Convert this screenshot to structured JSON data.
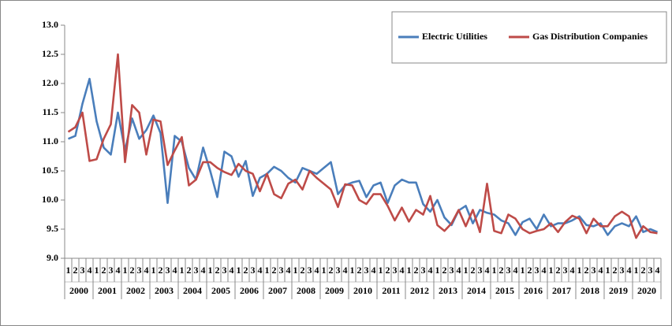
{
  "chart_data": {
    "type": "line",
    "categories": [
      "1",
      "2",
      "3",
      "4",
      "1",
      "2",
      "3",
      "4",
      "1",
      "2",
      "3",
      "4",
      "1",
      "2",
      "3",
      "4",
      "1",
      "2",
      "3",
      "4",
      "1",
      "2",
      "3",
      "4",
      "1",
      "2",
      "3",
      "4",
      "1",
      "2",
      "3",
      "4",
      "1",
      "2",
      "3",
      "4",
      "1",
      "2",
      "3",
      "4",
      "1",
      "2",
      "3",
      "4",
      "1",
      "2",
      "3",
      "4",
      "1",
      "2",
      "3",
      "4",
      "1",
      "2",
      "3",
      "4",
      "1",
      "2",
      "3",
      "4",
      "1",
      "2",
      "3",
      "4",
      "1",
      "2",
      "3",
      "4",
      "1",
      "2",
      "3",
      "4",
      "1",
      "2",
      "3",
      "4",
      "1",
      "2",
      "3",
      "4",
      "1",
      "2",
      "3",
      "4"
    ],
    "years": [
      "2000",
      "2001",
      "2002",
      "2003",
      "2004",
      "2005",
      "2006",
      "2007",
      "2008",
      "2009",
      "2010",
      "2011",
      "2012",
      "2013",
      "2014",
      "2015",
      "2016",
      "2017",
      "2018",
      "2019",
      "2020"
    ],
    "series": [
      {
        "name": "Electric Utilities",
        "color": "#4a7ebb",
        "values": [
          11.05,
          11.1,
          11.65,
          12.08,
          11.35,
          10.9,
          10.78,
          11.5,
          10.85,
          11.4,
          11.05,
          11.2,
          11.45,
          11.15,
          9.95,
          11.1,
          11.0,
          10.55,
          10.35,
          10.9,
          10.5,
          10.05,
          10.83,
          10.75,
          10.4,
          10.67,
          10.07,
          10.38,
          10.45,
          10.57,
          10.5,
          10.38,
          10.3,
          10.55,
          10.5,
          10.45,
          10.55,
          10.65,
          10.1,
          10.25,
          10.3,
          10.33,
          10.05,
          10.25,
          10.3,
          9.95,
          10.25,
          10.35,
          10.3,
          10.3,
          9.93,
          9.8,
          10.0,
          9.7,
          9.57,
          9.82,
          9.9,
          9.6,
          9.83,
          9.78,
          9.75,
          9.65,
          9.6,
          9.4,
          9.62,
          9.68,
          9.5,
          9.75,
          9.55,
          9.6,
          9.6,
          9.65,
          9.72,
          9.57,
          9.55,
          9.6,
          9.4,
          9.55,
          9.6,
          9.55,
          9.72,
          9.45,
          9.5,
          9.45
        ]
      },
      {
        "name": "Gas Distribution Companies",
        "color": "#be4b48",
        "values": [
          11.17,
          11.25,
          11.5,
          10.67,
          10.7,
          11.05,
          11.3,
          12.5,
          10.65,
          11.63,
          11.5,
          10.78,
          11.38,
          11.35,
          10.6,
          10.85,
          11.08,
          10.25,
          10.35,
          10.65,
          10.65,
          10.55,
          10.48,
          10.43,
          10.62,
          10.5,
          10.45,
          10.15,
          10.45,
          10.1,
          10.03,
          10.28,
          10.35,
          10.18,
          10.5,
          10.38,
          10.28,
          10.18,
          9.88,
          10.27,
          10.25,
          10.0,
          9.93,
          10.1,
          10.1,
          9.9,
          9.65,
          9.87,
          9.63,
          9.83,
          9.75,
          10.07,
          9.57,
          9.47,
          9.6,
          9.83,
          9.55,
          9.83,
          9.45,
          10.28,
          9.47,
          9.43,
          9.75,
          9.68,
          9.5,
          9.43,
          9.47,
          9.5,
          9.6,
          9.45,
          9.62,
          9.73,
          9.68,
          9.43,
          9.68,
          9.55,
          9.55,
          9.72,
          9.8,
          9.72,
          9.35,
          9.55,
          9.45,
          9.43
        ]
      }
    ],
    "ylim": [
      9,
      13
    ],
    "yticks": [
      {
        "value": 9,
        "label": "9.0"
      },
      {
        "value": 9.5,
        "label": "9.5"
      },
      {
        "value": 10,
        "label": "10.0"
      },
      {
        "value": 10.5,
        "label": "10.5"
      },
      {
        "value": 11,
        "label": "11.0"
      },
      {
        "value": 11.5,
        "label": "11.5"
      },
      {
        "value": 12,
        "label": "12.0"
      },
      {
        "value": 12.5,
        "label": "12.5"
      },
      {
        "value": 13,
        "label": "13.0"
      }
    ],
    "grid": false,
    "legend": "top-right"
  }
}
